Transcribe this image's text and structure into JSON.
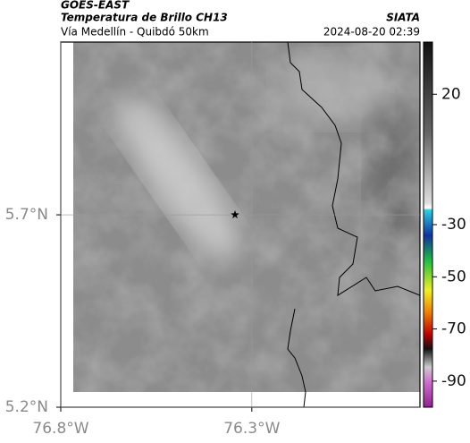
{
  "header": {
    "satellite": "GOES-EAST",
    "product": "Temperatura de Brillo CH13",
    "route": "Vía Medellín - Quibdó 50km",
    "org": "SIATA",
    "datetime": "2024-08-20 02:39"
  },
  "map": {
    "xlim": [
      -76.8,
      -75.86
    ],
    "ylim": [
      5.2,
      6.149
    ],
    "xticks": [
      {
        "value": -76.8,
        "label": "76.8°W"
      },
      {
        "value": -76.3,
        "label": "76.3°W"
      }
    ],
    "yticks": [
      {
        "value": 5.2,
        "label": "5.2°N"
      },
      {
        "value": 5.7,
        "label": "5.7°N"
      }
    ],
    "grid": true,
    "marker": {
      "x": -76.344,
      "y": 5.7
    },
    "colorbar": {
      "lim": [
        -100,
        40
      ],
      "ticks": [
        20,
        -30,
        -50,
        -70,
        -90
      ]
    }
  }
}
